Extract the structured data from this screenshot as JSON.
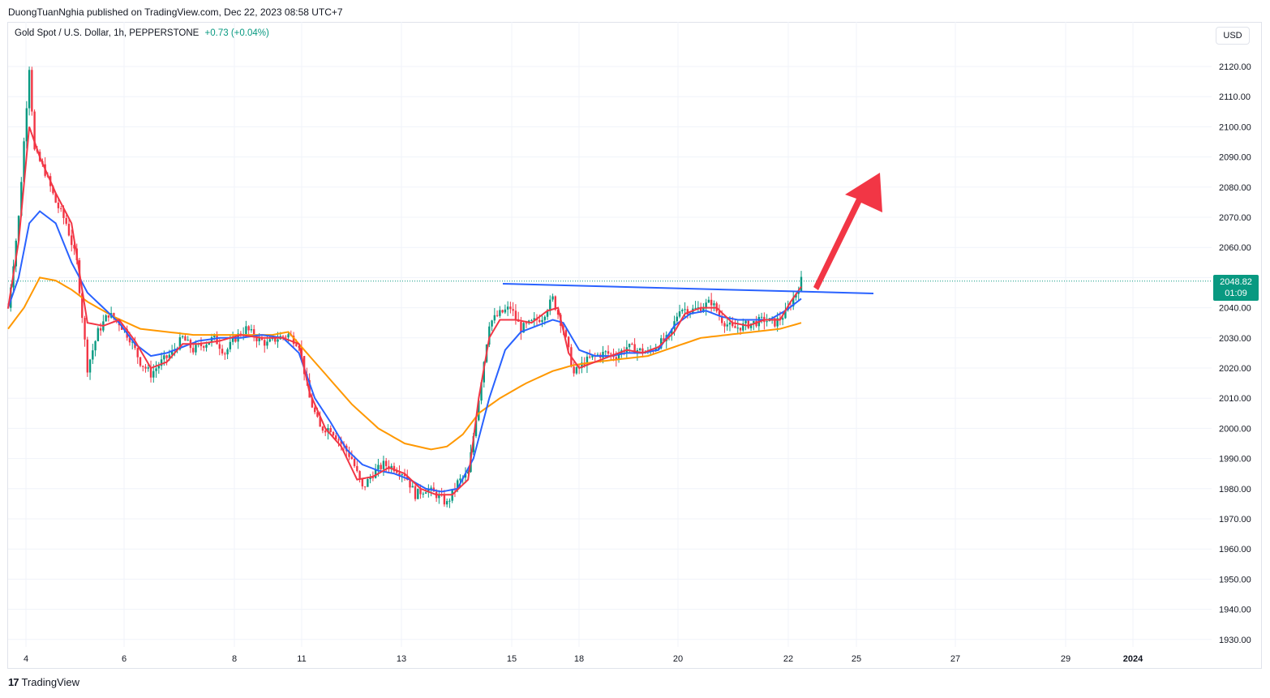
{
  "publisher": "DuongTuanNghia published on TradingView.com, Dec 22, 2023 08:58 UTC+7",
  "legend": {
    "symbol": "Gold Spot / U.S. Dollar, 1h, PEPPERSTONE",
    "change": "+0.73 (+0.04%)"
  },
  "currency_button": "USD",
  "price_tag": {
    "price": "2048.82",
    "countdown": "01:09"
  },
  "brand": {
    "logo": "17",
    "name": "TradingView"
  },
  "colors": {
    "up": "#089981",
    "down": "#f23645",
    "ema_fast": "#f23645",
    "ema_mid": "#2962ff",
    "ema_slow": "#ff9800",
    "trendline": "#2962ff",
    "arrow": "#f23645"
  },
  "chart_data": {
    "type": "candlestick",
    "ylim": [
      1925,
      2130
    ],
    "y_ticks": [
      "2120.00",
      "2110.00",
      "2100.00",
      "2090.00",
      "2080.00",
      "2070.00",
      "2060.00",
      "2050.00",
      "2040.00",
      "2030.00",
      "2020.00",
      "2010.00",
      "2000.00",
      "1990.00",
      "1980.00",
      "1970.00",
      "1960.00",
      "1950.00",
      "1940.00",
      "1930.00"
    ],
    "x_ticks": [
      "4",
      "6",
      "8",
      "11",
      "13",
      "15",
      "18",
      "20",
      "22",
      "25",
      "27",
      "29",
      "2024"
    ],
    "close_series": [
      [
        0,
        2040
      ],
      [
        4,
        2070
      ],
      [
        8,
        2120
      ],
      [
        10,
        2092
      ],
      [
        14,
        2085
      ],
      [
        18,
        2075
      ],
      [
        22,
        2068
      ],
      [
        26,
        2055
      ],
      [
        30,
        2020
      ],
      [
        34,
        2032
      ],
      [
        38,
        2038
      ],
      [
        42,
        2035
      ],
      [
        46,
        2030
      ],
      [
        50,
        2022
      ],
      [
        54,
        2018
      ],
      [
        58,
        2022
      ],
      [
        62,
        2025
      ],
      [
        66,
        2030
      ],
      [
        70,
        2026
      ],
      [
        74,
        2028
      ],
      [
        78,
        2030
      ],
      [
        82,
        2025
      ],
      [
        86,
        2030
      ],
      [
        90,
        2033
      ],
      [
        94,
        2030
      ],
      [
        98,
        2028
      ],
      [
        102,
        2030
      ],
      [
        106,
        2031
      ],
      [
        110,
        2028
      ],
      [
        114,
        2010
      ],
      [
        118,
        2000
      ],
      [
        122,
        2000
      ],
      [
        126,
        1995
      ],
      [
        130,
        1990
      ],
      [
        134,
        1980
      ],
      [
        138,
        1985
      ],
      [
        142,
        1988
      ],
      [
        146,
        1987
      ],
      [
        150,
        1985
      ],
      [
        154,
        1978
      ],
      [
        158,
        1980
      ],
      [
        162,
        1978
      ],
      [
        166,
        1975
      ],
      [
        170,
        1982
      ],
      [
        174,
        1985
      ],
      [
        178,
        2010
      ],
      [
        182,
        2035
      ],
      [
        186,
        2038
      ],
      [
        190,
        2040
      ],
      [
        194,
        2033
      ],
      [
        198,
        2035
      ],
      [
        202,
        2037
      ],
      [
        206,
        2043
      ],
      [
        210,
        2033
      ],
      [
        214,
        2018
      ],
      [
        218,
        2022
      ],
      [
        222,
        2024
      ],
      [
        226,
        2025
      ],
      [
        230,
        2024
      ],
      [
        234,
        2027
      ],
      [
        238,
        2026
      ],
      [
        242,
        2025
      ],
      [
        246,
        2028
      ],
      [
        250,
        2030
      ],
      [
        254,
        2040
      ],
      [
        258,
        2039
      ],
      [
        262,
        2040
      ],
      [
        266,
        2042
      ],
      [
        270,
        2036
      ],
      [
        274,
        2033
      ],
      [
        278,
        2034
      ],
      [
        282,
        2035
      ],
      [
        286,
        2036
      ],
      [
        290,
        2035
      ],
      [
        294,
        2038
      ],
      [
        298,
        2045
      ],
      [
        300,
        2049
      ]
    ],
    "ema_fast": [
      [
        0,
        2040
      ],
      [
        4,
        2062
      ],
      [
        8,
        2100
      ],
      [
        12,
        2090
      ],
      [
        18,
        2078
      ],
      [
        24,
        2068
      ],
      [
        30,
        2035
      ],
      [
        36,
        2034
      ],
      [
        42,
        2036
      ],
      [
        48,
        2029
      ],
      [
        54,
        2020
      ],
      [
        60,
        2022
      ],
      [
        66,
        2028
      ],
      [
        72,
        2028
      ],
      [
        80,
        2029
      ],
      [
        88,
        2031
      ],
      [
        96,
        2030
      ],
      [
        104,
        2030
      ],
      [
        110,
        2028
      ],
      [
        114,
        2012
      ],
      [
        120,
        2000
      ],
      [
        126,
        1994
      ],
      [
        132,
        1983
      ],
      [
        138,
        1984
      ],
      [
        144,
        1987
      ],
      [
        150,
        1985
      ],
      [
        156,
        1980
      ],
      [
        162,
        1978
      ],
      [
        168,
        1978
      ],
      [
        174,
        1983
      ],
      [
        178,
        2010
      ],
      [
        182,
        2030
      ],
      [
        186,
        2036
      ],
      [
        192,
        2036
      ],
      [
        198,
        2035
      ],
      [
        204,
        2039
      ],
      [
        208,
        2040
      ],
      [
        212,
        2025
      ],
      [
        216,
        2020
      ],
      [
        222,
        2022
      ],
      [
        228,
        2024
      ],
      [
        234,
        2026
      ],
      [
        240,
        2025
      ],
      [
        246,
        2027
      ],
      [
        252,
        2032
      ],
      [
        256,
        2038
      ],
      [
        262,
        2040
      ],
      [
        268,
        2040
      ],
      [
        274,
        2035
      ],
      [
        280,
        2034
      ],
      [
        286,
        2036
      ],
      [
        292,
        2036
      ],
      [
        296,
        2042
      ],
      [
        300,
        2047
      ]
    ],
    "ema_mid": [
      [
        0,
        2040
      ],
      [
        4,
        2050
      ],
      [
        8,
        2068
      ],
      [
        12,
        2072
      ],
      [
        18,
        2068
      ],
      [
        24,
        2055
      ],
      [
        30,
        2045
      ],
      [
        36,
        2040
      ],
      [
        42,
        2035
      ],
      [
        48,
        2028
      ],
      [
        54,
        2024
      ],
      [
        60,
        2025
      ],
      [
        66,
        2027
      ],
      [
        72,
        2029
      ],
      [
        80,
        2030
      ],
      [
        88,
        2030
      ],
      [
        96,
        2031
      ],
      [
        104,
        2030
      ],
      [
        110,
        2025
      ],
      [
        116,
        2010
      ],
      [
        122,
        2002
      ],
      [
        128,
        1993
      ],
      [
        134,
        1988
      ],
      [
        140,
        1986
      ],
      [
        146,
        1985
      ],
      [
        152,
        1983
      ],
      [
        158,
        1980
      ],
      [
        164,
        1979
      ],
      [
        170,
        1980
      ],
      [
        176,
        1990
      ],
      [
        182,
        2010
      ],
      [
        188,
        2026
      ],
      [
        194,
        2032
      ],
      [
        200,
        2034
      ],
      [
        206,
        2036
      ],
      [
        210,
        2035
      ],
      [
        216,
        2026
      ],
      [
        222,
        2024
      ],
      [
        228,
        2024
      ],
      [
        234,
        2025
      ],
      [
        240,
        2025
      ],
      [
        246,
        2026
      ],
      [
        252,
        2034
      ],
      [
        258,
        2038
      ],
      [
        264,
        2039
      ],
      [
        270,
        2037
      ],
      [
        276,
        2036
      ],
      [
        282,
        2036
      ],
      [
        288,
        2036
      ],
      [
        294,
        2039
      ],
      [
        300,
        2043
      ]
    ],
    "ema_slow": [
      [
        0,
        2033
      ],
      [
        6,
        2040
      ],
      [
        12,
        2050
      ],
      [
        18,
        2049
      ],
      [
        24,
        2046
      ],
      [
        30,
        2042
      ],
      [
        40,
        2037
      ],
      [
        50,
        2033
      ],
      [
        60,
        2032
      ],
      [
        70,
        2031
      ],
      [
        80,
        2031
      ],
      [
        90,
        2031
      ],
      [
        100,
        2031
      ],
      [
        106,
        2032
      ],
      [
        112,
        2026
      ],
      [
        120,
        2018
      ],
      [
        130,
        2008
      ],
      [
        140,
        2000
      ],
      [
        150,
        1995
      ],
      [
        160,
        1993
      ],
      [
        166,
        1994
      ],
      [
        172,
        1998
      ],
      [
        178,
        2005
      ],
      [
        186,
        2010
      ],
      [
        196,
        2015
      ],
      [
        206,
        2019
      ],
      [
        214,
        2021
      ],
      [
        222,
        2022
      ],
      [
        232,
        2023
      ],
      [
        242,
        2024
      ],
      [
        252,
        2027
      ],
      [
        262,
        2030
      ],
      [
        272,
        2031
      ],
      [
        282,
        2032
      ],
      [
        292,
        2033
      ],
      [
        300,
        2035
      ]
    ]
  }
}
